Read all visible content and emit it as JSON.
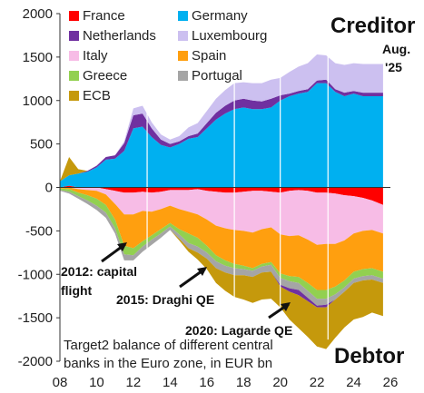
{
  "chart_data": {
    "type": "area",
    "title": "",
    "xlabel": "",
    "ylabel": "",
    "x_ticks": [
      "08",
      "10",
      "12",
      "14",
      "16",
      "18",
      "20",
      "22",
      "24",
      "26"
    ],
    "y_ticks": [
      2000,
      1500,
      1000,
      500,
      0,
      -500,
      -1000,
      -1500,
      -2000
    ],
    "xlim": [
      2008.0,
      2026.0
    ],
    "ylim": [
      -2000,
      2000
    ],
    "grid": false,
    "legend": "top, two columns",
    "x": [
      2008.0,
      2008.5,
      2009.0,
      2009.5,
      2010.0,
      2010.5,
      2011.0,
      2011.5,
      2012.0,
      2012.5,
      2013.0,
      2013.5,
      2014.0,
      2014.5,
      2015.0,
      2015.5,
      2016.0,
      2016.5,
      2017.0,
      2017.5,
      2018.0,
      2018.5,
      2019.0,
      2019.5,
      2020.0,
      2020.5,
      2021.0,
      2021.5,
      2022.0,
      2022.5,
      2023.0,
      2023.5,
      2024.0,
      2024.5,
      2025.0,
      2025.6
    ],
    "series": [
      {
        "name": "France",
        "color": "#ff0000",
        "side": "creditor",
        "values": [
          0,
          20,
          0,
          0,
          0,
          0,
          0,
          0,
          0,
          0,
          0,
          0,
          0,
          0,
          0,
          0,
          0,
          0,
          0,
          0,
          0,
          0,
          0,
          0,
          0,
          0,
          0,
          0,
          0,
          0,
          0,
          0,
          0,
          0,
          0,
          0
        ]
      },
      {
        "name": "Germany",
        "color": "#00b0f0",
        "side": "creditor",
        "values": [
          70,
          120,
          160,
          180,
          230,
          320,
          330,
          420,
          680,
          700,
          580,
          490,
          460,
          500,
          560,
          580,
          680,
          780,
          850,
          900,
          920,
          900,
          900,
          920,
          1000,
          1050,
          1080,
          1100,
          1200,
          1200,
          1100,
          1050,
          1080,
          1050,
          1050,
          1050
        ]
      },
      {
        "name": "Netherlands",
        "color": "#7030a0",
        "side": "creditor",
        "values": [
          0,
          0,
          0,
          10,
          20,
          30,
          40,
          90,
          150,
          150,
          100,
          60,
          40,
          30,
          30,
          40,
          60,
          80,
          90,
          100,
          100,
          100,
          90,
          100,
          60,
          30,
          30,
          30,
          30,
          40,
          30,
          40,
          30,
          40,
          40,
          40
        ]
      },
      {
        "name": "Luxembourg",
        "color": "#ccc0f0",
        "side": "creditor",
        "values": [
          0,
          0,
          0,
          0,
          0,
          0,
          0,
          20,
          80,
          90,
          70,
          60,
          50,
          60,
          100,
          120,
          140,
          160,
          180,
          200,
          190,
          200,
          210,
          220,
          200,
          250,
          280,
          300,
          300,
          280,
          300,
          320,
          320,
          330,
          330,
          330
        ]
      },
      {
        "name": "ECB",
        "color": "#c5990c",
        "side": "creditor",
        "values": [
          0,
          210,
          50,
          0,
          0,
          0,
          0,
          0,
          0,
          0,
          0,
          0,
          0,
          0,
          0,
          0,
          0,
          0,
          0,
          0,
          0,
          0,
          0,
          0,
          0,
          0,
          0,
          0,
          0,
          0,
          0,
          0,
          0,
          0,
          0,
          0
        ]
      },
      {
        "name": "France",
        "color": "#ff0000",
        "side": "debtor",
        "values": [
          0,
          0,
          0,
          0,
          0,
          20,
          40,
          60,
          60,
          50,
          60,
          50,
          30,
          30,
          30,
          20,
          40,
          50,
          60,
          60,
          50,
          40,
          40,
          50,
          60,
          40,
          30,
          40,
          60,
          60,
          70,
          90,
          100,
          120,
          150,
          200
        ]
      },
      {
        "name": "Italy",
        "color": "#f7bce6",
        "side": "debtor",
        "values": [
          0,
          0,
          20,
          30,
          40,
          60,
          150,
          250,
          250,
          220,
          220,
          200,
          180,
          220,
          250,
          290,
          330,
          390,
          410,
          430,
          450,
          480,
          440,
          410,
          480,
          520,
          520,
          560,
          600,
          590,
          580,
          520,
          430,
          380,
          340,
          330
        ]
      },
      {
        "name": "Spain",
        "color": "#ff9f0f",
        "side": "debtor",
        "values": [
          10,
          20,
          40,
          60,
          90,
          120,
          180,
          360,
          390,
          350,
          270,
          230,
          200,
          230,
          250,
          270,
          300,
          340,
          370,
          390,
          400,
          410,
          400,
          400,
          450,
          460,
          480,
          500,
          520,
          530,
          490,
          460,
          440,
          440,
          440,
          440
        ]
      },
      {
        "name": "Greece",
        "color": "#92d050",
        "side": "debtor",
        "values": [
          20,
          30,
          40,
          60,
          80,
          90,
          100,
          100,
          80,
          60,
          50,
          50,
          40,
          60,
          110,
          100,
          80,
          70,
          60,
          50,
          40,
          30,
          30,
          30,
          50,
          60,
          70,
          90,
          100,
          100,
          90,
          80,
          80,
          80,
          80,
          80
        ]
      },
      {
        "name": "Portugal",
        "color": "#a5a5a5",
        "side": "debtor",
        "values": [
          10,
          20,
          30,
          40,
          50,
          60,
          60,
          70,
          60,
          60,
          60,
          50,
          40,
          50,
          60,
          70,
          70,
          80,
          80,
          80,
          70,
          70,
          70,
          80,
          80,
          80,
          80,
          80,
          80,
          70,
          60,
          50,
          50,
          50,
          50,
          50
        ]
      },
      {
        "name": "Netherlands",
        "color": "#7030a0",
        "side": "debtor",
        "values": [
          0,
          0,
          0,
          0,
          0,
          0,
          0,
          0,
          0,
          0,
          0,
          0,
          0,
          0,
          0,
          0,
          0,
          0,
          0,
          0,
          0,
          0,
          0,
          0,
          20,
          40,
          60,
          40,
          20,
          30,
          0,
          0,
          0,
          0,
          0,
          0
        ]
      },
      {
        "name": "ECB",
        "color": "#c5990c",
        "side": "debtor",
        "values": [
          0,
          0,
          0,
          0,
          0,
          0,
          0,
          0,
          0,
          0,
          0,
          0,
          0,
          20,
          40,
          80,
          120,
          170,
          210,
          250,
          280,
          300,
          310,
          310,
          240,
          320,
          380,
          410,
          450,
          480,
          440,
          410,
          420,
          420,
          380,
          380
        ]
      }
    ],
    "legend_entries": [
      {
        "label": "France",
        "color": "#ff0000"
      },
      {
        "label": "Germany",
        "color": "#00b0f0"
      },
      {
        "label": "Netherlands",
        "color": "#7030a0"
      },
      {
        "label": "Luxembourg",
        "color": "#ccc0f0"
      },
      {
        "label": "Italy",
        "color": "#f7bce6"
      },
      {
        "label": "Spain",
        "color": "#ff9f0f"
      },
      {
        "label": "Greece",
        "color": "#92d050"
      },
      {
        "label": "Portugal",
        "color": "#a5a5a5"
      },
      {
        "label": "ECB",
        "color": "#c5990c"
      }
    ],
    "annotations": {
      "creditor": "Creditor",
      "debtor": "Debtor",
      "aug_line1": "Aug.",
      "aug_line2": "'25",
      "capital_flight_line1": "2012: capital",
      "capital_flight_line2": "flight",
      "draghi": "2015: Draghi QE",
      "lagarde": "2020: Lagarde QE",
      "note_line1": "Target2 balance of different central",
      "note_line2": "banks in the Euro zone, in EUR bn"
    }
  }
}
